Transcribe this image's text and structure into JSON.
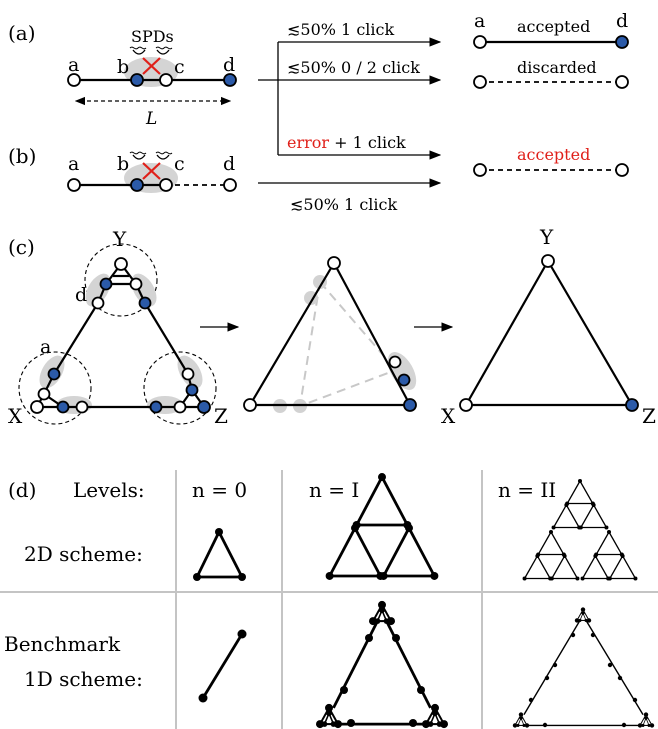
{
  "panel_labels": {
    "a": "(a)",
    "b": "(b)",
    "c": "(c)",
    "d": "(d)"
  },
  "panel_a": {
    "node_a": "a",
    "node_b": "b",
    "node_c": "c",
    "node_d": "d",
    "spds": "SPDs",
    "length": "L",
    "branch_1": "≲50% 1 click",
    "branch_2": "≲50% 0 / 2 click",
    "result_1_a": "a",
    "result_1_d": "d",
    "accepted": "accepted",
    "discarded": "discarded"
  },
  "panel_b": {
    "node_a": "a",
    "node_b": "b",
    "node_c": "c",
    "node_d": "d",
    "error_word": "error",
    "error_rest": " + 1 click",
    "branch_low": "≲50% 1 click",
    "accepted_red": "accepted"
  },
  "panel_c": {
    "Y1": "Y",
    "X1": "X",
    "Z1": "Z",
    "a": "a",
    "d": "d",
    "Y3": "Y",
    "X3": "X",
    "Z3": "Z"
  },
  "panel_d": {
    "levels": "Levels:",
    "n0": "n = 0",
    "n1": "n = I",
    "n2": "n = II",
    "row1": "2D scheme:",
    "row2_line1": "Benchmark",
    "row2_line2": "1D scheme:"
  },
  "colors": {
    "blue_node": "#2b5aa8",
    "red_text": "#e0201a",
    "shade": "#d4d4d4"
  }
}
